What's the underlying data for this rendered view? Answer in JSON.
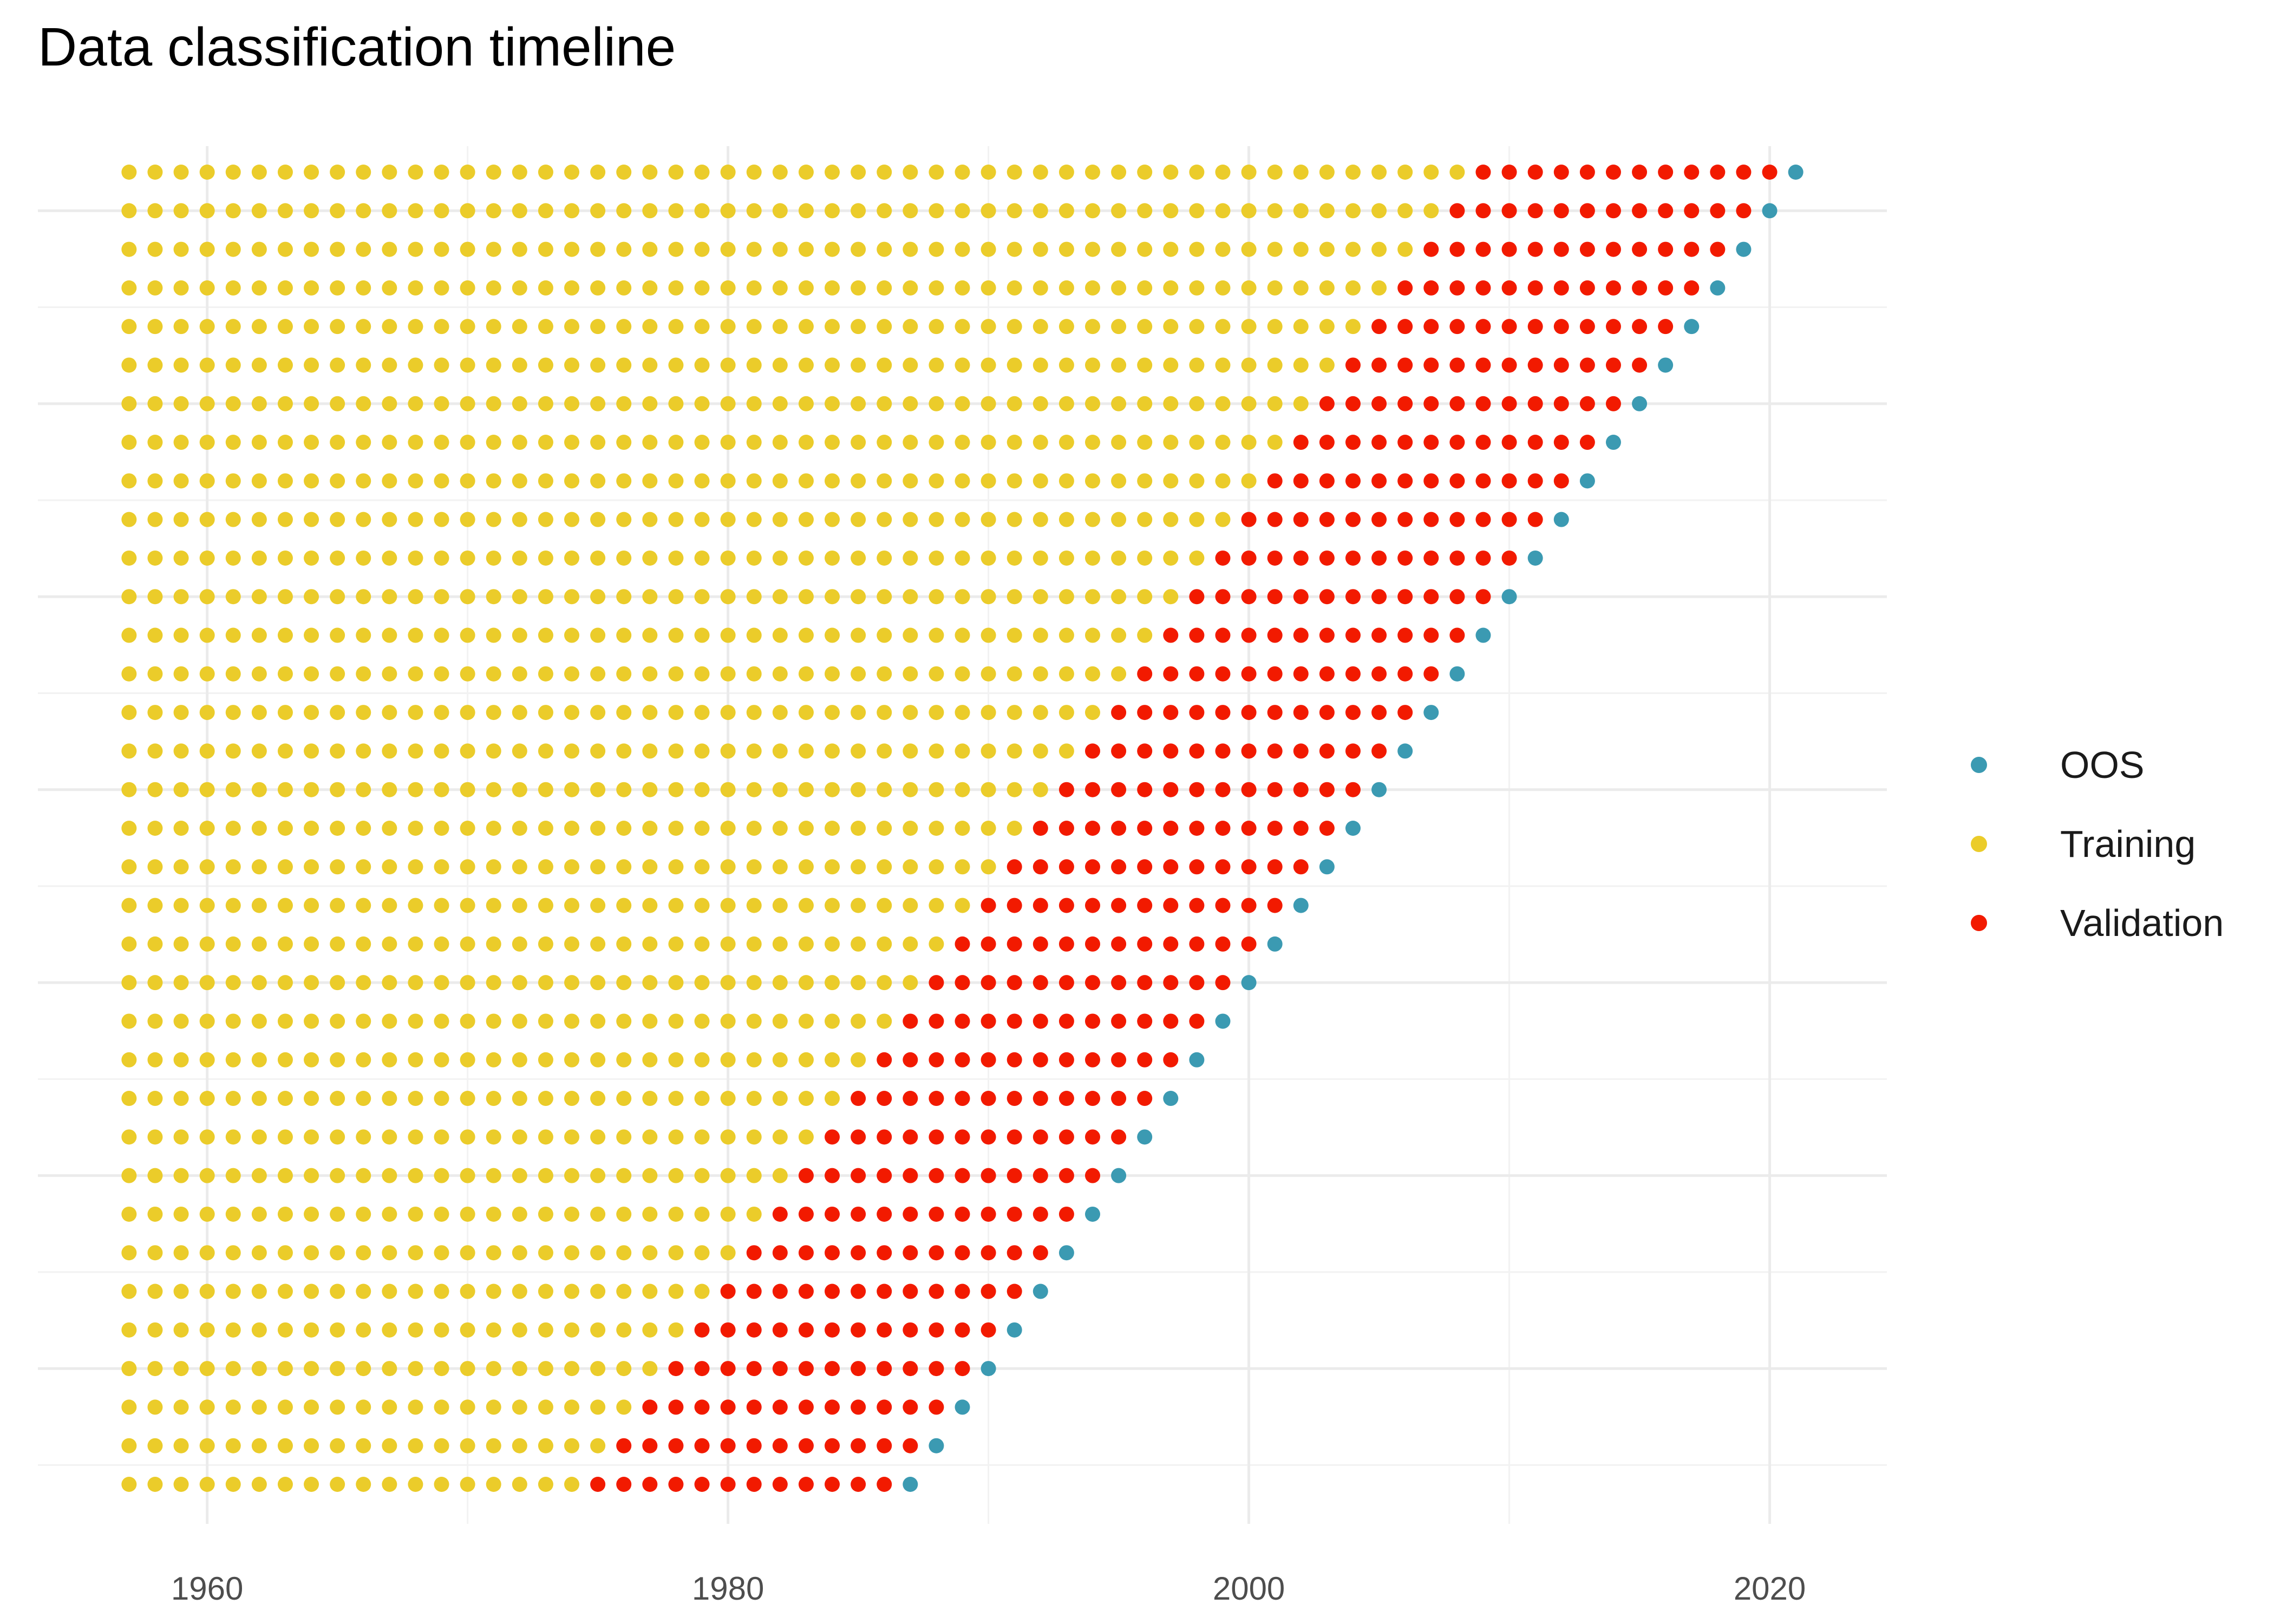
{
  "chart_data": {
    "type": "scatter",
    "title": "Data classification timeline",
    "xlabel": "",
    "ylabel": "",
    "xlim": [
      1953.5,
      2024.5
    ],
    "x_ticks": [
      1960,
      1980,
      2000,
      2020
    ],
    "y_tick_labels": "none",
    "grid": true,
    "legend_position": "right",
    "series": [
      {
        "name": "OOS",
        "color": "#3B9AB2"
      },
      {
        "name": "Training",
        "color": "#EBCC2A"
      },
      {
        "name": "Validation",
        "color": "#F21A00"
      }
    ],
    "rows": [
      {
        "train_from": 1957,
        "train_to": 1974,
        "validation_from": 1975,
        "validation_to": 1986,
        "oos": 1987
      },
      {
        "train_from": 1957,
        "train_to": 1975,
        "validation_from": 1976,
        "validation_to": 1987,
        "oos": 1988
      },
      {
        "train_from": 1957,
        "train_to": 1976,
        "validation_from": 1977,
        "validation_to": 1988,
        "oos": 1989
      },
      {
        "train_from": 1957,
        "train_to": 1977,
        "validation_from": 1978,
        "validation_to": 1989,
        "oos": 1990
      },
      {
        "train_from": 1957,
        "train_to": 1978,
        "validation_from": 1979,
        "validation_to": 1990,
        "oos": 1991
      },
      {
        "train_from": 1957,
        "train_to": 1979,
        "validation_from": 1980,
        "validation_to": 1991,
        "oos": 1992
      },
      {
        "train_from": 1957,
        "train_to": 1980,
        "validation_from": 1981,
        "validation_to": 1992,
        "oos": 1993
      },
      {
        "train_from": 1957,
        "train_to": 1981,
        "validation_from": 1982,
        "validation_to": 1993,
        "oos": 1994
      },
      {
        "train_from": 1957,
        "train_to": 1982,
        "validation_from": 1983,
        "validation_to": 1994,
        "oos": 1995
      },
      {
        "train_from": 1957,
        "train_to": 1983,
        "validation_from": 1984,
        "validation_to": 1995,
        "oos": 1996
      },
      {
        "train_from": 1957,
        "train_to": 1984,
        "validation_from": 1985,
        "validation_to": 1996,
        "oos": 1997
      },
      {
        "train_from": 1957,
        "train_to": 1985,
        "validation_from": 1986,
        "validation_to": 1997,
        "oos": 1998
      },
      {
        "train_from": 1957,
        "train_to": 1986,
        "validation_from": 1987,
        "validation_to": 1998,
        "oos": 1999
      },
      {
        "train_from": 1957,
        "train_to": 1987,
        "validation_from": 1988,
        "validation_to": 1999,
        "oos": 2000
      },
      {
        "train_from": 1957,
        "train_to": 1988,
        "validation_from": 1989,
        "validation_to": 2000,
        "oos": 2001
      },
      {
        "train_from": 1957,
        "train_to": 1989,
        "validation_from": 1990,
        "validation_to": 2001,
        "oos": 2002
      },
      {
        "train_from": 1957,
        "train_to": 1990,
        "validation_from": 1991,
        "validation_to": 2002,
        "oos": 2003
      },
      {
        "train_from": 1957,
        "train_to": 1991,
        "validation_from": 1992,
        "validation_to": 2003,
        "oos": 2004
      },
      {
        "train_from": 1957,
        "train_to": 1992,
        "validation_from": 1993,
        "validation_to": 2004,
        "oos": 2005
      },
      {
        "train_from": 1957,
        "train_to": 1993,
        "validation_from": 1994,
        "validation_to": 2005,
        "oos": 2006
      },
      {
        "train_from": 1957,
        "train_to": 1994,
        "validation_from": 1995,
        "validation_to": 2006,
        "oos": 2007
      },
      {
        "train_from": 1957,
        "train_to": 1995,
        "validation_from": 1996,
        "validation_to": 2007,
        "oos": 2008
      },
      {
        "train_from": 1957,
        "train_to": 1996,
        "validation_from": 1997,
        "validation_to": 2008,
        "oos": 2009
      },
      {
        "train_from": 1957,
        "train_to": 1997,
        "validation_from": 1998,
        "validation_to": 2009,
        "oos": 2010
      },
      {
        "train_from": 1957,
        "train_to": 1998,
        "validation_from": 1999,
        "validation_to": 2010,
        "oos": 2011
      },
      {
        "train_from": 1957,
        "train_to": 1999,
        "validation_from": 2000,
        "validation_to": 2011,
        "oos": 2012
      },
      {
        "train_from": 1957,
        "train_to": 2000,
        "validation_from": 2001,
        "validation_to": 2012,
        "oos": 2013
      },
      {
        "train_from": 1957,
        "train_to": 2001,
        "validation_from": 2002,
        "validation_to": 2013,
        "oos": 2014
      },
      {
        "train_from": 1957,
        "train_to": 2002,
        "validation_from": 2003,
        "validation_to": 2014,
        "oos": 2015
      },
      {
        "train_from": 1957,
        "train_to": 2003,
        "validation_from": 2004,
        "validation_to": 2015,
        "oos": 2016
      },
      {
        "train_from": 1957,
        "train_to": 2004,
        "validation_from": 2005,
        "validation_to": 2016,
        "oos": 2017
      },
      {
        "train_from": 1957,
        "train_to": 2005,
        "validation_from": 2006,
        "validation_to": 2017,
        "oos": 2018
      },
      {
        "train_from": 1957,
        "train_to": 2006,
        "validation_from": 2007,
        "validation_to": 2018,
        "oos": 2019
      },
      {
        "train_from": 1957,
        "train_to": 2007,
        "validation_from": 2008,
        "validation_to": 2019,
        "oos": 2020
      },
      {
        "train_from": 1957,
        "train_to": 2008,
        "validation_from": 2009,
        "validation_to": 2020,
        "oos": 2021
      }
    ]
  }
}
